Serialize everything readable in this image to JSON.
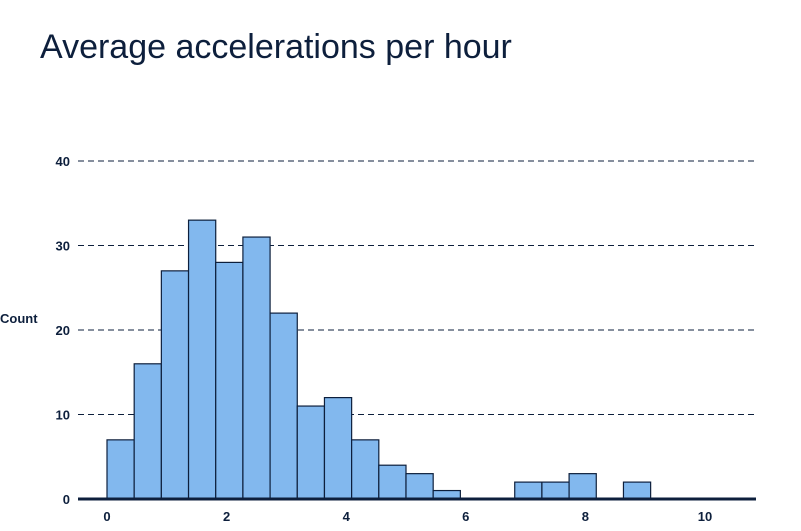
{
  "chart_data": {
    "type": "bar",
    "title": "Average accelerations per hour",
    "xlabel": "",
    "ylabel": "Count",
    "bin_width": 0.4545,
    "bins": [
      {
        "x0": 0.0,
        "count": 7
      },
      {
        "x0": 0.4545,
        "count": 16
      },
      {
        "x0": 0.909,
        "count": 27
      },
      {
        "x0": 1.3636,
        "count": 33
      },
      {
        "x0": 1.8182,
        "count": 28
      },
      {
        "x0": 2.2727,
        "count": 31
      },
      {
        "x0": 2.7273,
        "count": 22
      },
      {
        "x0": 3.1818,
        "count": 11
      },
      {
        "x0": 3.6364,
        "count": 12
      },
      {
        "x0": 4.0909,
        "count": 7
      },
      {
        "x0": 4.5455,
        "count": 4
      },
      {
        "x0": 5.0,
        "count": 3
      },
      {
        "x0": 5.4545,
        "count": 1
      },
      {
        "x0": 5.9091,
        "count": 0
      },
      {
        "x0": 6.3636,
        "count": 0
      },
      {
        "x0": 6.8182,
        "count": 2
      },
      {
        "x0": 7.2727,
        "count": 2
      },
      {
        "x0": 7.7273,
        "count": 3
      },
      {
        "x0": 8.1818,
        "count": 0
      },
      {
        "x0": 8.6364,
        "count": 2
      },
      {
        "x0": 9.0909,
        "count": 0
      },
      {
        "x0": 9.5455,
        "count": 0
      },
      {
        "x0": 10.0,
        "count": 0
      }
    ],
    "xticks": [
      0,
      2,
      4,
      6,
      8,
      10
    ],
    "yticks": [
      0,
      10,
      20,
      30,
      40
    ],
    "xlim": [
      -0.4,
      10.8
    ],
    "ylim": [
      0,
      40
    ],
    "grid": true,
    "colors": {
      "bar_fill": "#82b8ee",
      "bar_stroke": "#0d1f3c",
      "text": "#0d1f3c",
      "grid": "#0d1f3c"
    }
  }
}
